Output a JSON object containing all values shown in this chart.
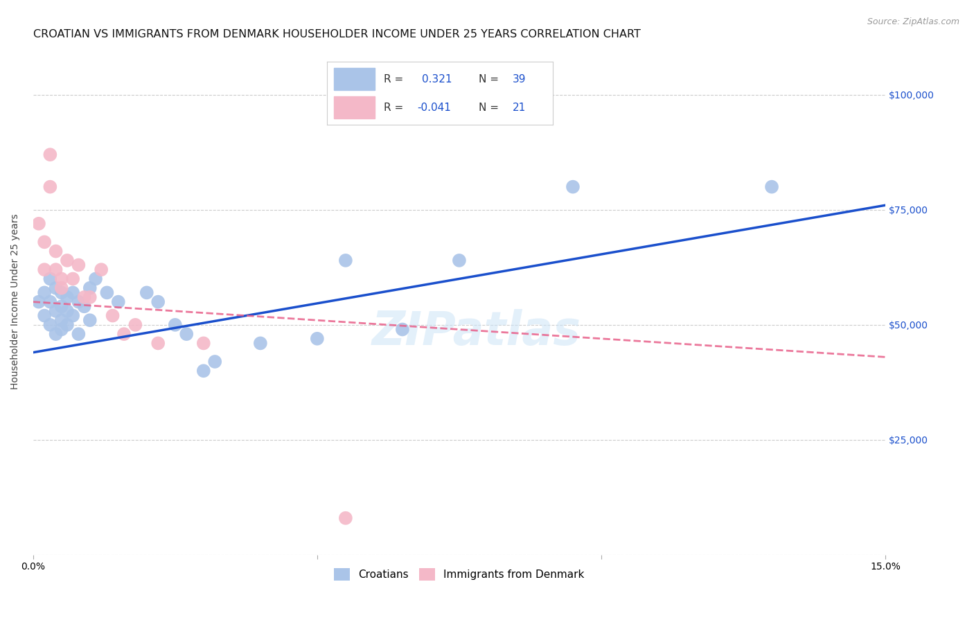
{
  "title": "CROATIAN VS IMMIGRANTS FROM DENMARK HOUSEHOLDER INCOME UNDER 25 YEARS CORRELATION CHART",
  "source": "Source: ZipAtlas.com",
  "ylabel": "Householder Income Under 25 years",
  "xlim": [
    0.0,
    0.15
  ],
  "ylim": [
    0,
    110000
  ],
  "yticks": [
    0,
    25000,
    50000,
    75000,
    100000
  ],
  "ytick_labels": [
    "",
    "$25,000",
    "$50,000",
    "$75,000",
    "$100,000"
  ],
  "xticks": [
    0.0,
    0.05,
    0.1,
    0.15
  ],
  "xtick_labels": [
    "0.0%",
    "",
    "",
    "15.0%"
  ],
  "bg_color": "#ffffff",
  "grid_color": "#cccccc",
  "croatian_color": "#aac4e8",
  "denmark_color": "#f4b8c8",
  "line_blue": "#1a4fcc",
  "line_pink": "#e8608a",
  "legend_val1": "0.321",
  "legend_N1": "39",
  "legend_val2": "-0.041",
  "legend_N2": "21",
  "croatians_x": [
    0.001,
    0.002,
    0.002,
    0.003,
    0.003,
    0.003,
    0.004,
    0.004,
    0.004,
    0.005,
    0.005,
    0.005,
    0.005,
    0.006,
    0.006,
    0.006,
    0.007,
    0.007,
    0.008,
    0.008,
    0.009,
    0.01,
    0.01,
    0.011,
    0.013,
    0.015,
    0.02,
    0.022,
    0.025,
    0.027,
    0.03,
    0.032,
    0.04,
    0.05,
    0.055,
    0.065,
    0.075,
    0.095,
    0.13
  ],
  "croatians_y": [
    55000,
    57000,
    52000,
    60000,
    55000,
    50000,
    58000,
    53000,
    48000,
    57000,
    54000,
    51000,
    49000,
    56000,
    53000,
    50000,
    57000,
    52000,
    55000,
    48000,
    54000,
    58000,
    51000,
    60000,
    57000,
    55000,
    57000,
    55000,
    50000,
    48000,
    40000,
    42000,
    46000,
    47000,
    64000,
    49000,
    64000,
    80000,
    80000
  ],
  "denmark_x": [
    0.001,
    0.002,
    0.002,
    0.003,
    0.003,
    0.004,
    0.004,
    0.005,
    0.005,
    0.006,
    0.007,
    0.008,
    0.009,
    0.01,
    0.012,
    0.014,
    0.016,
    0.018,
    0.022,
    0.03,
    0.055
  ],
  "denmark_y": [
    72000,
    68000,
    62000,
    87000,
    80000,
    66000,
    62000,
    60000,
    58000,
    64000,
    60000,
    63000,
    56000,
    56000,
    62000,
    52000,
    48000,
    50000,
    46000,
    46000,
    8000
  ],
  "blue_line_x": [
    0.0,
    0.15
  ],
  "blue_line_y": [
    44000,
    76000
  ],
  "pink_line_x": [
    0.0,
    0.15
  ],
  "pink_line_y": [
    55000,
    43000
  ],
  "watermark": "ZIPatlas",
  "title_fontsize": 11.5,
  "label_fontsize": 10,
  "tick_fontsize": 10,
  "legend_fontsize": 11
}
